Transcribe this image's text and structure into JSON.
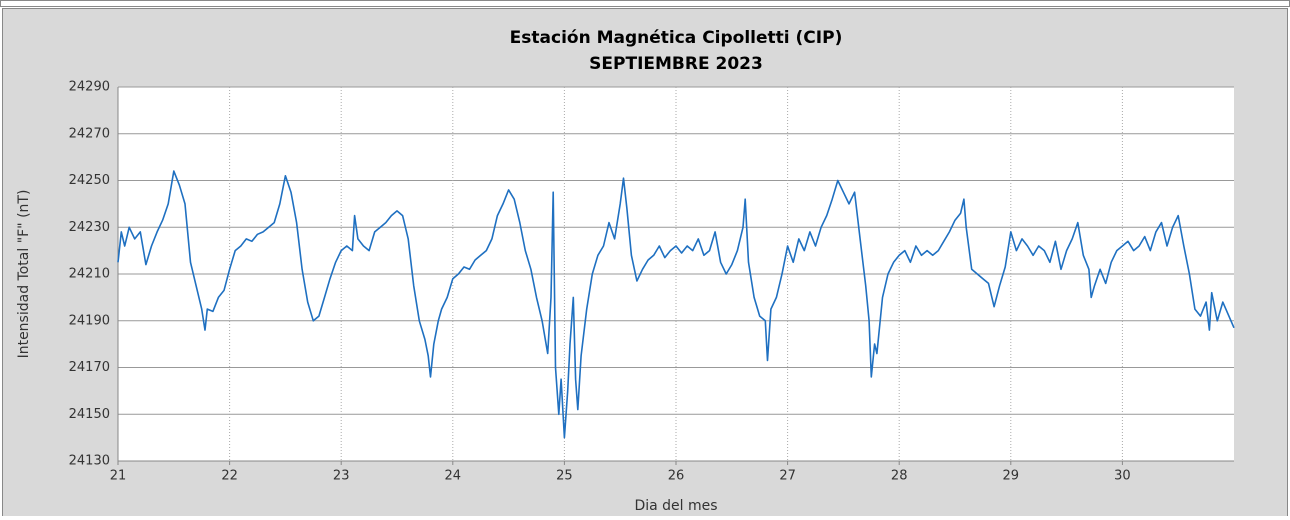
{
  "chart_data": {
    "type": "line",
    "title": "Estación Magnética Cipolletti (CIP)",
    "subtitle": "SEPTIEMBRE 2023",
    "xlabel": "Dia del mes",
    "ylabel": "Intensidad Total \"F\" (nT)",
    "xlim": [
      21,
      31
    ],
    "xticks": [
      21,
      22,
      23,
      24,
      25,
      26,
      27,
      28,
      29,
      30
    ],
    "ylim": [
      24130,
      24290
    ],
    "yticks": [
      24130,
      24150,
      24170,
      24190,
      24210,
      24230,
      24250,
      24270,
      24290
    ],
    "grid": true,
    "x": [
      21.0,
      21.03,
      21.06,
      21.1,
      21.15,
      21.2,
      21.25,
      21.3,
      21.35,
      21.4,
      21.45,
      21.5,
      21.55,
      21.6,
      21.65,
      21.7,
      21.75,
      21.78,
      21.8,
      21.85,
      21.9,
      21.95,
      22.0,
      22.05,
      22.1,
      22.15,
      22.2,
      22.25,
      22.3,
      22.35,
      22.4,
      22.45,
      22.5,
      22.55,
      22.6,
      22.65,
      22.7,
      22.75,
      22.8,
      22.85,
      22.9,
      22.95,
      23.0,
      23.05,
      23.1,
      23.12,
      23.15,
      23.2,
      23.25,
      23.3,
      23.35,
      23.4,
      23.45,
      23.5,
      23.55,
      23.6,
      23.65,
      23.7,
      23.75,
      23.78,
      23.8,
      23.83,
      23.87,
      23.9,
      23.95,
      24.0,
      24.05,
      24.1,
      24.15,
      24.2,
      24.25,
      24.3,
      24.35,
      24.4,
      24.45,
      24.5,
      24.55,
      24.6,
      24.65,
      24.7,
      24.75,
      24.8,
      24.85,
      24.88,
      24.9,
      24.92,
      24.95,
      24.97,
      25.0,
      25.03,
      25.05,
      25.08,
      25.1,
      25.12,
      25.15,
      25.2,
      25.25,
      25.3,
      25.35,
      25.4,
      25.45,
      25.5,
      25.53,
      25.56,
      25.6,
      25.65,
      25.7,
      25.75,
      25.8,
      25.85,
      25.9,
      25.95,
      26.0,
      26.05,
      26.1,
      26.15,
      26.2,
      26.25,
      26.3,
      26.35,
      26.4,
      26.45,
      26.5,
      26.55,
      26.6,
      26.62,
      26.65,
      26.7,
      26.75,
      26.8,
      26.82,
      26.85,
      26.9,
      26.95,
      27.0,
      27.05,
      27.1,
      27.15,
      27.2,
      27.25,
      27.3,
      27.35,
      27.4,
      27.45,
      27.5,
      27.55,
      27.6,
      27.65,
      27.7,
      27.73,
      27.75,
      27.78,
      27.8,
      27.85,
      27.9,
      27.95,
      28.0,
      28.05,
      28.1,
      28.15,
      28.2,
      28.25,
      28.3,
      28.35,
      28.4,
      28.45,
      28.5,
      28.55,
      28.58,
      28.6,
      28.65,
      28.7,
      28.75,
      28.8,
      28.85,
      28.9,
      28.95,
      29.0,
      29.05,
      29.1,
      29.15,
      29.2,
      29.25,
      29.3,
      29.35,
      29.4,
      29.45,
      29.5,
      29.55,
      29.6,
      29.65,
      29.7,
      29.72,
      29.75,
      29.8,
      29.85,
      29.9,
      29.95,
      30.0,
      30.05,
      30.1,
      30.15,
      30.2,
      30.25,
      30.3,
      30.35,
      30.4,
      30.45,
      30.5,
      30.55,
      30.6,
      30.65,
      30.7,
      30.75,
      30.78,
      30.8,
      30.85,
      30.9,
      31.0
    ],
    "series": [
      {
        "color": "#1f70c1",
        "values": [
          24215,
          24228,
          24222,
          24230,
          24225,
          24228,
          24214,
          24222,
          24228,
          24233,
          24240,
          24254,
          24248,
          24240,
          24215,
          24205,
          24195,
          24186,
          24195,
          24194,
          24200,
          24203,
          24212,
          24220,
          24222,
          24225,
          24224,
          24227,
          24228,
          24230,
          24232,
          24240,
          24252,
          24245,
          24232,
          24212,
          24198,
          24190,
          24192,
          24200,
          24208,
          24215,
          24220,
          24222,
          24220,
          24235,
          24225,
          24222,
          24220,
          24228,
          24230,
          24232,
          24235,
          24237,
          24235,
          24225,
          24205,
          24190,
          24182,
          24175,
          24166,
          24180,
          24190,
          24195,
          24200,
          24208,
          24210,
          24213,
          24212,
          24216,
          24218,
          24220,
          24225,
          24235,
          24240,
          24246,
          24242,
          24232,
          24220,
          24212,
          24200,
          24190,
          24176,
          24200,
          24245,
          24170,
          24150,
          24165,
          24140,
          24160,
          24180,
          24200,
          24165,
          24152,
          24175,
          24195,
          24210,
          24218,
          24222,
          24232,
          24225,
          24240,
          24251,
          24238,
          24218,
          24207,
          24212,
          24216,
          24218,
          24222,
          24217,
          24220,
          24222,
          24219,
          24222,
          24220,
          24225,
          24218,
          24220,
          24228,
          24215,
          24210,
          24214,
          24220,
          24230,
          24242,
          24215,
          24200,
          24192,
          24190,
          24173,
          24195,
          24200,
          24210,
          24222,
          24215,
          24225,
          24220,
          24228,
          24222,
          24230,
          24235,
          24242,
          24250,
          24245,
          24240,
          24245,
          24225,
          24205,
          24190,
          24166,
          24180,
          24176,
          24200,
          24210,
          24215,
          24218,
          24220,
          24215,
          24222,
          24218,
          24220,
          24218,
          24220,
          24224,
          24228,
          24233,
          24236,
          24242,
          24230,
          24212,
          24210,
          24208,
          24206,
          24196,
          24205,
          24213,
          24228,
          24220,
          24225,
          24222,
          24218,
          24222,
          24220,
          24215,
          24224,
          24212,
          24220,
          24225,
          24232,
          24218,
          24212,
          24200,
          24205,
          24212,
          24206,
          24215,
          24220,
          24222,
          24224,
          24220,
          24222,
          24226,
          24220,
          24228,
          24232,
          24222,
          24230,
          24235,
          24222,
          24210,
          24195,
          24192,
          24198,
          24186,
          24202,
          24190,
          24198,
          24187
        ]
      }
    ]
  }
}
